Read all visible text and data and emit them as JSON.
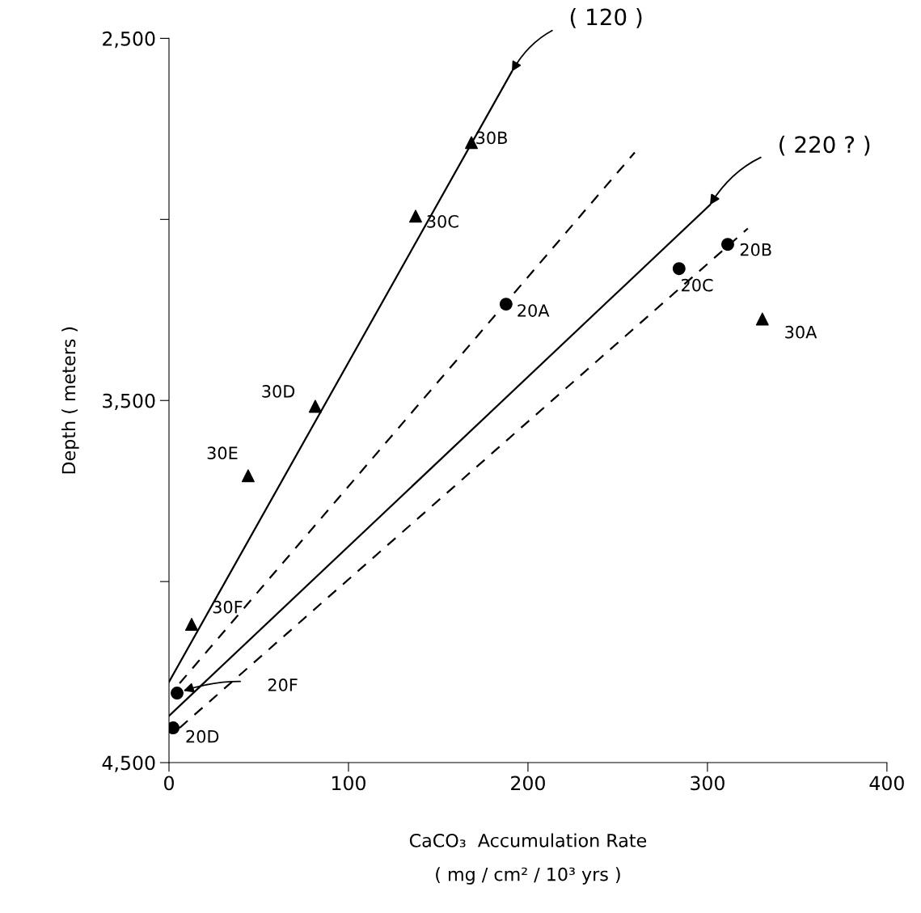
{
  "chart_data": {
    "type": "scatter",
    "xlabel": "CaCO₃  Accumulation Rate\n( mg / cm² / 10³ yrs )",
    "ylabel": "Depth ( meters )",
    "xlim": [
      0,
      400
    ],
    "ylim": [
      4500,
      2500
    ],
    "xticks": [
      0,
      100,
      200,
      300,
      400
    ],
    "yticks": [
      {
        "value": 2500,
        "label": "2,500"
      },
      {
        "value": 3000,
        "label": null
      },
      {
        "value": 3500,
        "label": "3,500"
      },
      {
        "value": 4000,
        "label": null
      },
      {
        "value": 4500,
        "label": "4,500"
      }
    ],
    "grid": false,
    "legend": false,
    "series": [
      {
        "marker": "triangle",
        "color": "#000000",
        "x": [
          168.5,
          137.4,
          81.5,
          44.1,
          12.6,
          330.6
        ],
        "values": [
          2788,
          2991,
          3516,
          3708,
          4118,
          3275
        ]
      },
      {
        "marker": "circle",
        "color": "#000000",
        "x": [
          187.8,
          311.3,
          284.2,
          4.5,
          2.3
        ],
        "values": [
          3234,
          3069,
          3136,
          4308,
          4404
        ]
      },
      {
        "type": "line",
        "line_style": "solid",
        "marker": "none",
        "color": "#000000",
        "x": [
          0,
          191
        ],
        "values": [
          4277,
          2592
        ]
      },
      {
        "type": "line",
        "line_style": "dashed",
        "marker": "none",
        "color": "#000000",
        "x": [
          5.9,
          259.5
        ],
        "values": [
          4281,
          2815
        ]
      },
      {
        "type": "line",
        "line_style": "solid",
        "marker": "none",
        "color": "#000000",
        "x": [
          0,
          301.4
        ],
        "values": [
          4371,
          2960
        ]
      },
      {
        "type": "line",
        "line_style": "dashed",
        "marker": "none",
        "color": "#000000",
        "x": [
          5.9,
          322.5
        ],
        "values": [
          4404,
          3025
        ]
      }
    ],
    "annotations": [
      {
        "text": "( 120 )",
        "x": 191,
        "y": 2592
      },
      {
        "text": "( 220 ? )",
        "x": 301.4,
        "y": 2960
      },
      "20F",
      {
        "text": "30B",
        "x": 168.5,
        "y": 2788
      },
      {
        "text": "30C",
        "x": 137.4,
        "y": 2991
      },
      {
        "text": "30D",
        "x": 81.5,
        "y": 3516
      },
      {
        "text": "30E",
        "x": 44.1,
        "y": 3708
      },
      {
        "text": "30F",
        "x": 12.6,
        "y": 4118
      },
      {
        "text": "30A",
        "x": 330.6,
        "y": 3275
      },
      {
        "text": "20A",
        "x": 187.8,
        "y": 3234
      },
      {
        "text": "20B",
        "x": 311.3,
        "y": 3069
      },
      {
        "text": "20C",
        "x": 284.2,
        "y": 3136
      },
      {
        "text": "20D",
        "x": 2.3,
        "y": 4404
      }
    ]
  }
}
